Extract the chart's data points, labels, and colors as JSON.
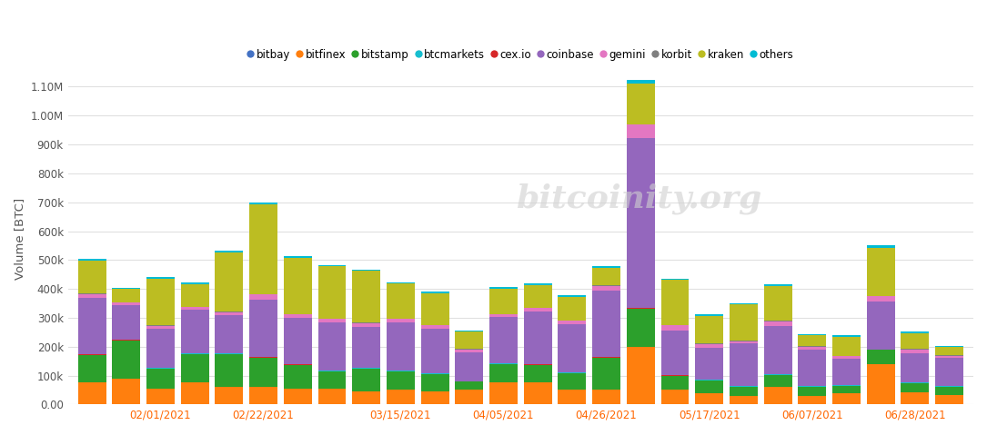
{
  "exchanges": [
    "bitbay",
    "bitfinex",
    "bitstamp",
    "btcmarkets",
    "cex.io",
    "coinbase",
    "gemini",
    "korbit",
    "kraken",
    "others"
  ],
  "colors": [
    "#4472c4",
    "#ff7f0e",
    "#2ca02c",
    "#17becf",
    "#d62728",
    "#9467bd",
    "#e377c2",
    "#7f7f7f",
    "#bcbd22",
    "#00bcd4"
  ],
  "n_bars": 26,
  "data": {
    "bitbay": [
      500,
      500,
      500,
      500,
      500,
      500,
      500,
      500,
      500,
      500,
      500,
      500,
      500,
      500,
      500,
      500,
      500,
      500,
      500,
      500,
      500,
      500,
      500,
      500,
      500,
      500
    ],
    "bitfinex": [
      75000,
      90000,
      55000,
      75000,
      60000,
      60000,
      55000,
      55000,
      45000,
      50000,
      45000,
      50000,
      75000,
      75000,
      50000,
      50000,
      200000,
      50000,
      38000,
      30000,
      60000,
      30000,
      40000,
      140000,
      42000,
      32000
    ],
    "bitstamp": [
      95000,
      130000,
      70000,
      100000,
      115000,
      100000,
      80000,
      60000,
      80000,
      65000,
      60000,
      28000,
      65000,
      60000,
      58000,
      110000,
      130000,
      48000,
      45000,
      32000,
      42000,
      32000,
      25000,
      48000,
      32000,
      30000
    ],
    "btcmarkets": [
      1500,
      1500,
      1500,
      1500,
      1500,
      1500,
      1500,
      1500,
      1500,
      1500,
      1500,
      1500,
      1500,
      1500,
      1500,
      1500,
      1500,
      1500,
      1500,
      1500,
      1500,
      1500,
      1500,
      1500,
      1500,
      1500
    ],
    "cex.io": [
      1500,
      1500,
      1500,
      1500,
      1500,
      1500,
      1500,
      1500,
      1500,
      1500,
      1500,
      1500,
      1500,
      1500,
      1500,
      1500,
      1500,
      1500,
      1500,
      1500,
      1500,
      1500,
      1500,
      1500,
      1500,
      1500
    ],
    "coinbase": [
      195000,
      120000,
      135000,
      150000,
      130000,
      200000,
      160000,
      165000,
      140000,
      165000,
      155000,
      100000,
      160000,
      185000,
      165000,
      230000,
      590000,
      155000,
      110000,
      145000,
      165000,
      125000,
      90000,
      165000,
      100000,
      95000
    ],
    "gemini": [
      14000,
      9000,
      9000,
      9000,
      11000,
      18000,
      13000,
      13000,
      13000,
      13000,
      10000,
      9000,
      9000,
      10000,
      13000,
      18000,
      45000,
      18000,
      13000,
      9000,
      18000,
      9000,
      9000,
      18000,
      13000,
      9000
    ],
    "korbit": [
      1500,
      1500,
      1500,
      1500,
      1500,
      1500,
      1500,
      1500,
      1500,
      1500,
      1500,
      1500,
      1500,
      1500,
      1500,
      1500,
      1500,
      1500,
      1500,
      1500,
      1500,
      1500,
      1500,
      1500,
      1500,
      1500
    ],
    "kraken": [
      115000,
      45000,
      160000,
      78000,
      205000,
      310000,
      195000,
      180000,
      180000,
      120000,
      110000,
      60000,
      88000,
      78000,
      82000,
      60000,
      140000,
      155000,
      95000,
      125000,
      120000,
      38000,
      65000,
      165000,
      55000,
      28000
    ],
    "others": [
      5000,
      5000,
      7000,
      5000,
      5000,
      7000,
      5000,
      5000,
      5000,
      5000,
      5000,
      5000,
      5000,
      5000,
      5000,
      5000,
      14000,
      5000,
      5000,
      5000,
      5000,
      5000,
      5000,
      9000,
      5000,
      5000
    ]
  },
  "tick_positions": [
    2,
    5,
    9,
    12,
    15,
    18,
    21,
    24
  ],
  "tick_labels": [
    "02/01/2021",
    "02/22/2021",
    "03/15/2021",
    "04/05/2021",
    "04/26/2021",
    "05/17/2021",
    "06/07/2021",
    "06/28/2021"
  ],
  "ylabel": "Volume [BTC]",
  "ylim": [
    0,
    1150000
  ],
  "yticks": [
    0,
    100000,
    200000,
    300000,
    400000,
    500000,
    600000,
    700000,
    800000,
    900000,
    1000000,
    1100000
  ],
  "ytick_labels": [
    "0.00",
    "100k",
    "200k",
    "300k",
    "400k",
    "500k",
    "600k",
    "700k",
    "800k",
    "900k",
    "1.00M",
    "1.10M"
  ],
  "background_color": "#ffffff",
  "grid_color": "#e0e0e0",
  "watermark": "bitcoinity.org"
}
